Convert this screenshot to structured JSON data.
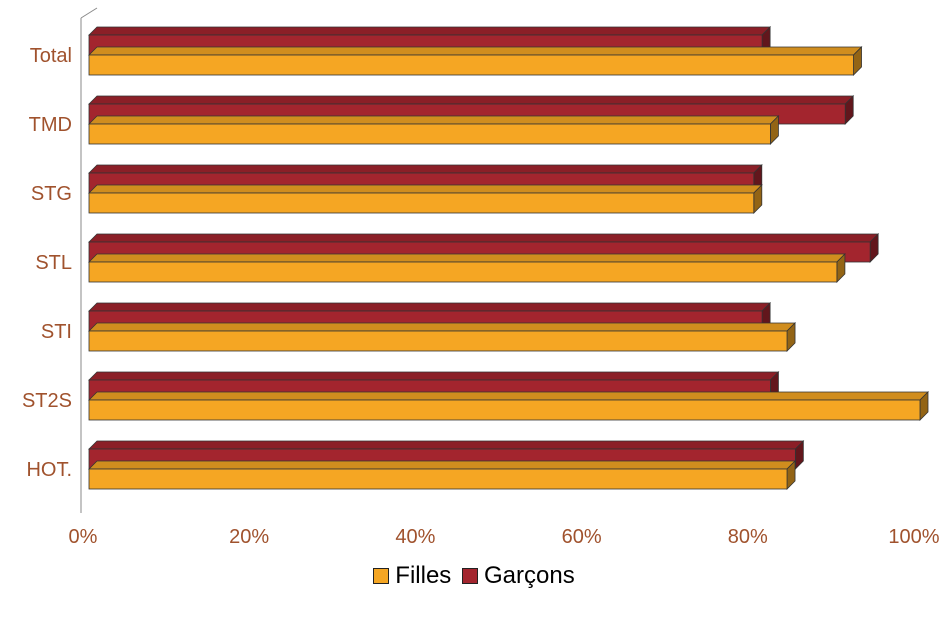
{
  "chart_data": {
    "type": "bar",
    "orientation": "horizontal",
    "style": "3d",
    "categories": [
      "Total",
      "TMD",
      "STG",
      "STL",
      "STI",
      "ST2S",
      "HOT."
    ],
    "series": [
      {
        "name": "Filles",
        "color": "#F5A623",
        "values": [
          92,
          82,
          80,
          90,
          84,
          100,
          84
        ]
      },
      {
        "name": "Garçons",
        "color": "#A3252E",
        "values": [
          81,
          91,
          80,
          94,
          81,
          82,
          85
        ]
      }
    ],
    "xlim": [
      0,
      100
    ],
    "x_ticks": [
      "0%",
      "20%",
      "40%",
      "60%",
      "80%",
      "100%"
    ],
    "grid": false,
    "legend_position": "bottom"
  }
}
